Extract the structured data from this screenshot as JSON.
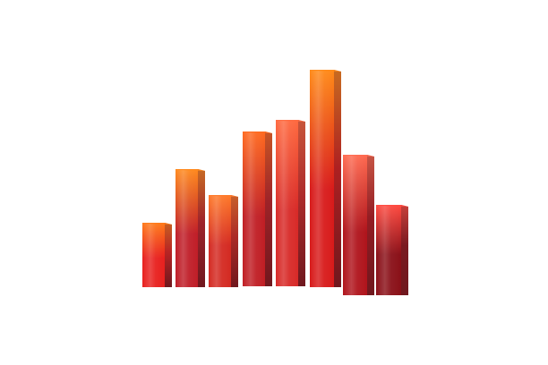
{
  "chart_data": {
    "type": "bar",
    "style": "3d-extruded-bars",
    "axes_visible": false,
    "grid": false,
    "legend": "none",
    "values": [
      72,
      132,
      103,
      173,
      186,
      243,
      157,
      101
    ],
    "front_colors_top": [
      "#ff7a1a",
      "#ff8a1e",
      "#ff7a2a",
      "#ff6a20",
      "#ff6a40",
      "#ff8a18",
      "#ff6a50",
      "#ff4a40"
    ],
    "front_colors_bottom": [
      "#e8201e",
      "#c01e28",
      "#d42a22",
      "#c01e24",
      "#d82a28",
      "#d81a1a",
      "#b0141c",
      "#8a1018"
    ],
    "side_color_dark": "#7a0c14"
  }
}
